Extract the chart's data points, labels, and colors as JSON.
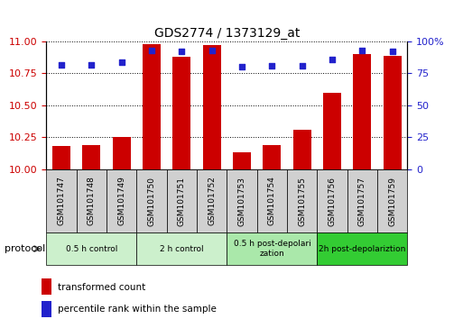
{
  "title": "GDS2774 / 1373129_at",
  "samples": [
    "GSM101747",
    "GSM101748",
    "GSM101749",
    "GSM101750",
    "GSM101751",
    "GSM101752",
    "GSM101753",
    "GSM101754",
    "GSM101755",
    "GSM101756",
    "GSM101757",
    "GSM101759"
  ],
  "transformed_count": [
    10.18,
    10.19,
    10.25,
    10.98,
    10.88,
    10.97,
    10.13,
    10.19,
    10.31,
    10.6,
    10.9,
    10.89
  ],
  "percentile_rank": [
    82,
    82,
    84,
    93,
    92,
    93,
    80,
    81,
    81,
    86,
    93,
    92
  ],
  "ylim_left": [
    10,
    11
  ],
  "ylim_right": [
    0,
    100
  ],
  "yticks_left": [
    10,
    10.25,
    10.5,
    10.75,
    11
  ],
  "yticks_right": [
    0,
    25,
    50,
    75,
    100
  ],
  "bar_color": "#cc0000",
  "dot_color": "#2222cc",
  "groups": [
    {
      "label": "0.5 h control",
      "start": 0,
      "end": 3,
      "color": "#ccf0cc"
    },
    {
      "label": "2 h control",
      "start": 3,
      "end": 6,
      "color": "#ccf0cc"
    },
    {
      "label": "0.5 h post-depolarization",
      "start": 6,
      "end": 9,
      "color": "#aae8aa"
    },
    {
      "label": "2h post-depolariztion",
      "start": 9,
      "end": 12,
      "color": "#33cc33"
    }
  ],
  "protocol_label": "protocol",
  "legend_bar_label": "transformed count",
  "legend_dot_label": "percentile rank within the sample",
  "tick_label_color_left": "#cc0000",
  "tick_label_color_right": "#2222cc",
  "sample_box_color": "#d0d0d0",
  "background_color": "#ffffff"
}
